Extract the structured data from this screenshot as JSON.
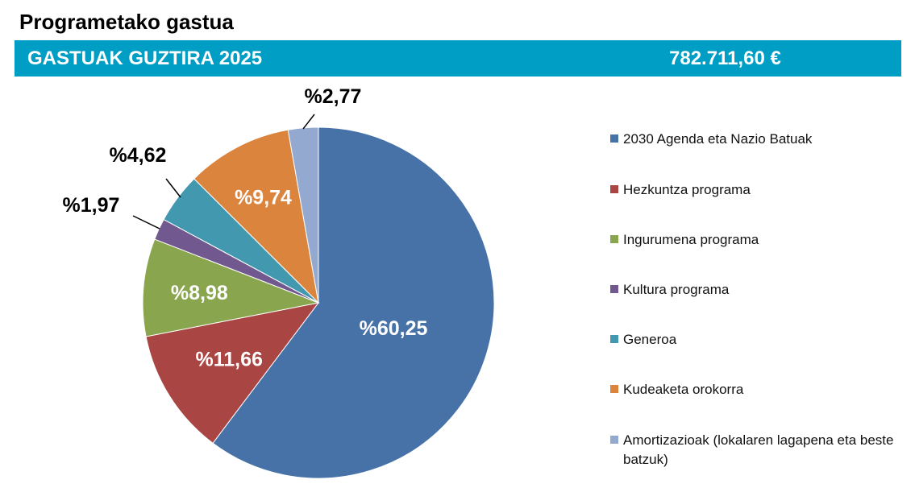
{
  "header": {
    "title": "Programetako gastua",
    "banner_label": "GASTUAK GUZTIRA 2025",
    "banner_total": "782.711,60 €"
  },
  "colors": {
    "banner": "#009dc4"
  },
  "chart_data": {
    "type": "pie",
    "title": "Programetako gastua",
    "total_label": "782.711,60 €",
    "legend_position": "right",
    "slices": [
      {
        "name": "2030 Agenda eta Nazio Batuak",
        "value": 60.25,
        "label": "%60,25",
        "color": "#4672a8"
      },
      {
        "name": "Hezkuntza programa",
        "value": 11.66,
        "label": "%11,66",
        "color": "#a94543"
      },
      {
        "name": "Ingurumena programa",
        "value": 8.98,
        "label": "%8,98",
        "color": "#89a54e"
      },
      {
        "name": "Kultura programa",
        "value": 1.97,
        "label": "%1,97",
        "color": "#71588f"
      },
      {
        "name": "Generoa",
        "value": 4.62,
        "label": "%4,62",
        "color": "#4198af"
      },
      {
        "name": "Kudeaketa orokorra",
        "value": 9.74,
        "label": "%9,74",
        "color": "#db843d"
      },
      {
        "name": "Amortizazioak (lokalaren lagapena eta beste batzuk)",
        "value": 2.77,
        "label": "%2,77",
        "color": "#93a9cf"
      }
    ]
  }
}
